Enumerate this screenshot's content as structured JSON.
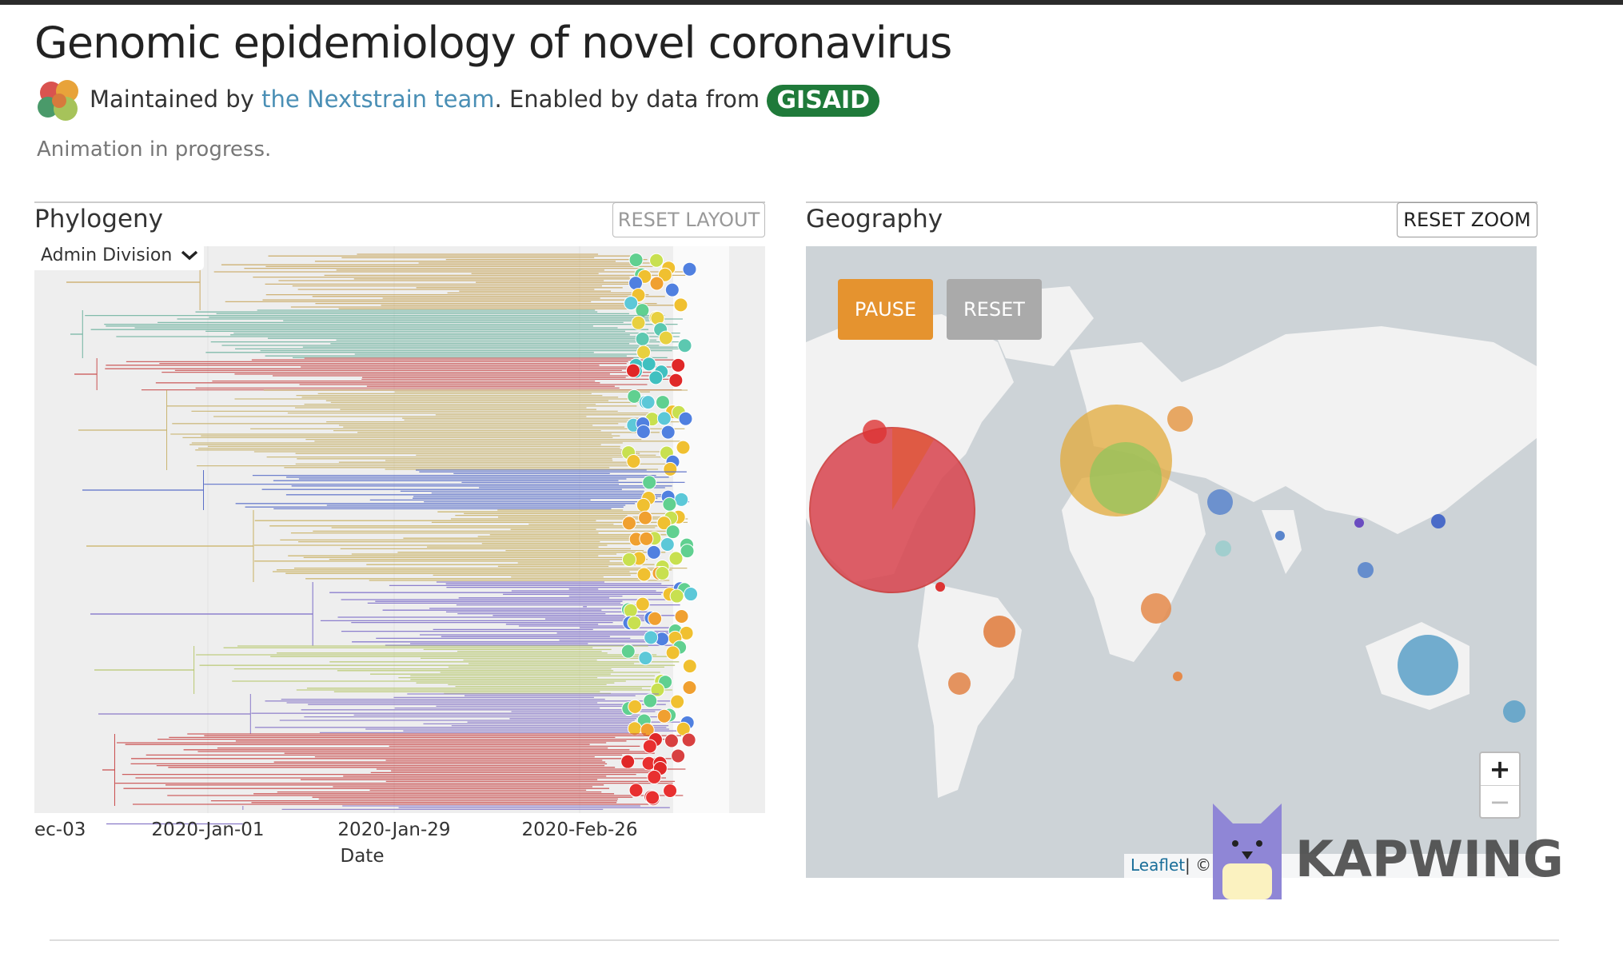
{
  "header": {
    "title": "Genomic epidemiology of novel coronavirus",
    "maintained_by": "Maintained by",
    "team_link": "the Nextstrain team",
    "enabled_by": ". Enabled by data from",
    "gisaid": "GISAID",
    "status": "Animation in progress."
  },
  "phylogeny": {
    "title": "Phylogeny",
    "reset_button": "RESET LAYOUT",
    "color_by": "Admin Division",
    "x_ticks": [
      "ec-03",
      "2020-Jan-01",
      "2020-Jan-29",
      "2020-Feb-26"
    ],
    "x_label": "Date"
  },
  "geography": {
    "title": "Geography",
    "reset_button": "RESET ZOOM",
    "pause_button": "PAUSE",
    "reset_animation_button": "RESET",
    "zoom_in": "+",
    "zoom_out": "−",
    "attribution_link": "Leaflet",
    "attribution_sep": "| ©"
  },
  "watermark": "KAPWING"
}
